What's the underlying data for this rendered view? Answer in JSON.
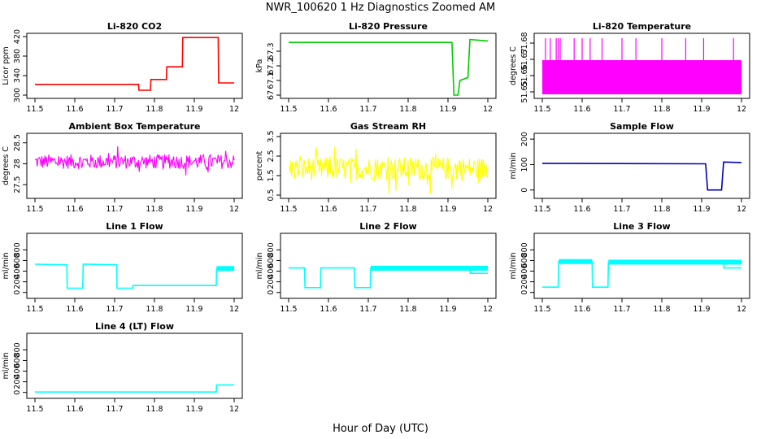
{
  "title": "NWR_100620  1 Hz Diagnostics Zoomed AM",
  "xlabel": "Hour of Day (UTC)",
  "chart_data": [
    {
      "type": "line",
      "title": "Li-820 CO2",
      "ylabel": "Licor ppm",
      "color": "#ff0000",
      "xlim": [
        11.5,
        12.0
      ],
      "ylim": [
        300,
        420
      ],
      "xticks": [
        11.5,
        11.6,
        11.7,
        11.8,
        11.9,
        12.0
      ],
      "yticks": [
        300,
        340,
        380,
        420
      ],
      "series": [
        {
          "points": [
            [
              11.5,
              322
            ],
            [
              11.76,
              322
            ],
            [
              11.761,
              310
            ],
            [
              11.79,
              310
            ],
            [
              11.791,
              332
            ],
            [
              11.83,
              332
            ],
            [
              11.831,
              358
            ],
            [
              11.87,
              358
            ],
            [
              11.871,
              418
            ],
            [
              11.96,
              418
            ],
            [
              11.961,
              325
            ],
            [
              12.0,
              325
            ]
          ]
        }
      ]
    },
    {
      "type": "line",
      "title": "Li-820 Pressure",
      "ylabel": "kPa",
      "color": "#00cc00",
      "xlim": [
        11.5,
        12.0
      ],
      "ylim": [
        67.0,
        67.4
      ],
      "xticks": [
        11.5,
        11.6,
        11.7,
        11.8,
        11.9,
        12.0
      ],
      "yticks": [
        67.0,
        67.1,
        67.2,
        67.3
      ],
      "series": [
        {
          "points": [
            [
              11.5,
              67.36
            ],
            [
              11.91,
              67.36
            ],
            [
              11.915,
              67.0
            ],
            [
              11.925,
              67.0
            ],
            [
              11.93,
              67.1
            ],
            [
              11.95,
              67.12
            ],
            [
              11.955,
              67.38
            ],
            [
              12.0,
              67.37
            ]
          ]
        }
      ]
    },
    {
      "type": "line",
      "title": "Li-820 Temperature",
      "ylabel": "degrees C",
      "color": "#ff00ff",
      "xlim": [
        11.5,
        12.0
      ],
      "ylim": [
        51.648,
        51.684
      ],
      "xticks": [
        11.5,
        11.6,
        11.7,
        11.8,
        11.9,
        12.0
      ],
      "yticks": [
        51.65,
        51.66,
        51.67,
        51.68
      ],
      "band": [
        51.6485,
        51.6695
      ],
      "spikes": [
        11.508,
        11.52,
        11.535,
        11.54,
        11.545,
        11.58,
        11.6,
        11.62,
        11.65,
        11.7,
        11.735,
        11.8,
        11.86,
        11.905,
        11.98
      ],
      "spike_top": 51.683
    },
    {
      "type": "line",
      "title": "Ambient Box Temperature",
      "ylabel": "degrees C",
      "color": "#ff00ff",
      "xlim": [
        11.5,
        12.0
      ],
      "ylim": [
        27.25,
        28.65
      ],
      "xticks": [
        11.5,
        11.6,
        11.7,
        11.8,
        11.9,
        12.0
      ],
      "yticks": [
        27.5,
        28.0,
        28.5
      ],
      "noise": {
        "center": 28.05,
        "spread": 0.35
      }
    },
    {
      "type": "line",
      "title": "Gas Stream RH",
      "ylabel": "percent",
      "color": "#ffff00",
      "xlim": [
        11.5,
        12.0
      ],
      "ylim": [
        0.5,
        3.5
      ],
      "xticks": [
        11.5,
        11.6,
        11.7,
        11.8,
        11.9,
        12.0
      ],
      "yticks": [
        0.5,
        1.5,
        2.5,
        3.5
      ],
      "noise": {
        "center": 1.85,
        "spread": 1.2
      }
    },
    {
      "type": "line",
      "title": "Sample Flow",
      "ylabel": "ml/min",
      "color": "#0000bb",
      "xlim": [
        11.5,
        12.0
      ],
      "ylim": [
        -20,
        210
      ],
      "xticks": [
        11.5,
        11.6,
        11.7,
        11.8,
        11.9,
        12.0
      ],
      "yticks": [
        0,
        100,
        200
      ],
      "series": [
        {
          "points": [
            [
              11.5,
              105
            ],
            [
              11.91,
              103
            ],
            [
              11.915,
              0
            ],
            [
              11.95,
              0
            ],
            [
              11.955,
              110
            ],
            [
              12.0,
              108
            ]
          ]
        }
      ]
    },
    {
      "type": "line",
      "title": "Line 1 Flow",
      "ylabel": "ml/min",
      "color": "#00ffff",
      "xlim": [
        11.5,
        12.0
      ],
      "ylim": [
        -50,
        1050
      ],
      "xticks": [
        11.5,
        11.6,
        11.7,
        11.8,
        11.9,
        12.0
      ],
      "yticks": [
        0,
        200,
        400,
        600,
        800
      ],
      "series": [
        {
          "points": [
            [
              11.5,
              530
            ],
            [
              11.58,
              520
            ],
            [
              11.581,
              80
            ],
            [
              11.62,
              80
            ],
            [
              11.621,
              530
            ],
            [
              11.705,
              520
            ],
            [
              11.706,
              80
            ],
            [
              11.745,
              80
            ],
            [
              11.746,
              130
            ],
            [
              11.955,
              130
            ],
            [
              11.956,
              450
            ],
            [
              12.0,
              450
            ]
          ]
        }
      ],
      "thick_ranges": [
        [
          11.956,
          12.0
        ]
      ]
    },
    {
      "type": "line",
      "title": "Line 2 Flow",
      "ylabel": "ml/min",
      "color": "#00ffff",
      "xlim": [
        11.5,
        12.0
      ],
      "ylim": [
        -50,
        1050
      ],
      "xticks": [
        11.5,
        11.6,
        11.7,
        11.8,
        11.9,
        12.0
      ],
      "yticks": [
        0,
        200,
        400,
        600,
        800
      ],
      "series": [
        {
          "points": [
            [
              11.5,
              460
            ],
            [
              11.54,
              460
            ],
            [
              11.541,
              90
            ],
            [
              11.58,
              90
            ],
            [
              11.581,
              460
            ],
            [
              11.665,
              460
            ],
            [
              11.666,
              90
            ],
            [
              11.705,
              90
            ],
            [
              11.706,
              455
            ],
            [
              11.955,
              455
            ],
            [
              11.956,
              360
            ],
            [
              12.0,
              360
            ]
          ]
        }
      ],
      "thick_ranges": [
        [
          11.706,
          12.0
        ]
      ]
    },
    {
      "type": "line",
      "title": "Line 3 Flow",
      "ylabel": "ml/min",
      "color": "#00ffff",
      "xlim": [
        11.5,
        12.0
      ],
      "ylim": [
        -50,
        1050
      ],
      "xticks": [
        11.5,
        11.6,
        11.7,
        11.8,
        11.9,
        12.0
      ],
      "yticks": [
        0,
        200,
        400,
        600,
        800
      ],
      "series": [
        {
          "points": [
            [
              11.5,
              100
            ],
            [
              11.54,
              100
            ],
            [
              11.541,
              580
            ],
            [
              11.625,
              580
            ],
            [
              11.626,
              100
            ],
            [
              11.665,
              100
            ],
            [
              11.666,
              570
            ],
            [
              11.955,
              570
            ],
            [
              11.956,
              460
            ],
            [
              12.0,
              460
            ]
          ]
        }
      ],
      "thick_ranges": [
        [
          11.541,
          11.625
        ],
        [
          11.666,
          12.0
        ]
      ]
    },
    {
      "type": "line",
      "title": "Line 4 (LT) Flow",
      "ylabel": "ml/min",
      "color": "#00ffff",
      "xlim": [
        11.5,
        12.0
      ],
      "ylim": [
        -50,
        1050
      ],
      "xticks": [
        11.5,
        11.6,
        11.7,
        11.8,
        11.9,
        12.0
      ],
      "yticks": [
        0,
        200,
        400,
        600,
        800
      ],
      "series": [
        {
          "points": [
            [
              11.5,
              8
            ],
            [
              11.955,
              8
            ],
            [
              11.956,
              140
            ],
            [
              12.0,
              140
            ]
          ]
        }
      ]
    }
  ]
}
